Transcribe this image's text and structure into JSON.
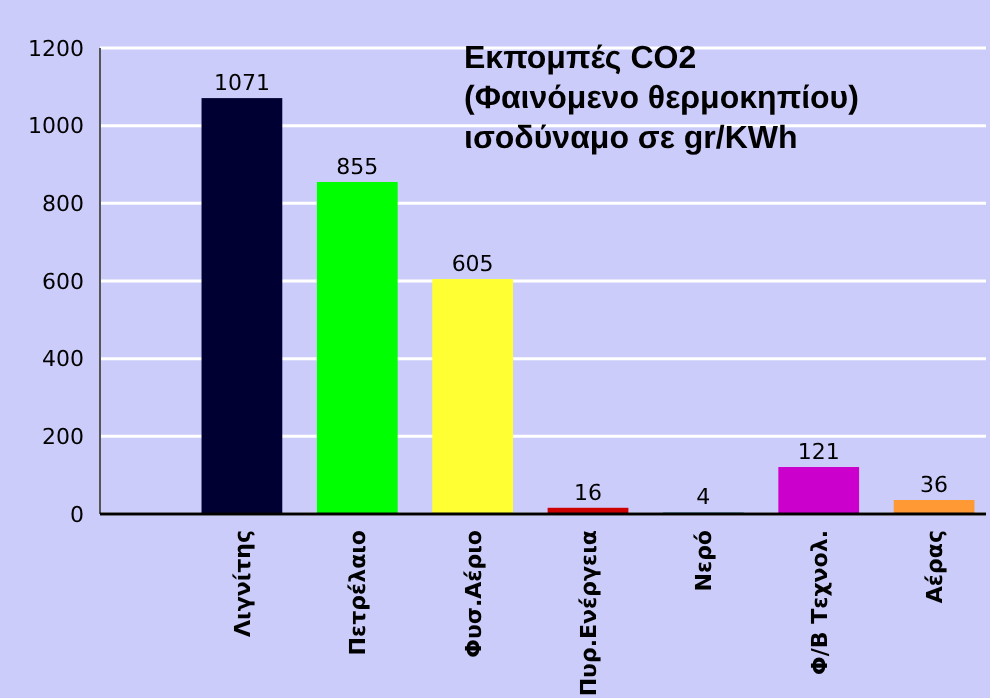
{
  "chart_data": {
    "type": "bar",
    "title": "Εκπομπές CO2\n(Φαινόμενο θερμοκηπίου)\nισοδύναμο σε gr/KWh",
    "categories": [
      "Λιγνίτης",
      "Πετρέλαιο",
      "Φυσ.Αέριο",
      "Πυρ.Ενέργεια",
      "Νερό",
      "Φ/Β Τεχνολ.",
      "Αέρας"
    ],
    "values": [
      1071,
      855,
      605,
      16,
      4,
      121,
      36
    ],
    "colors": [
      "#000033",
      "#00ff00",
      "#ffff33",
      "#cc0000",
      "#339999",
      "#cc00cc",
      "#ff9933"
    ],
    "ylim": [
      0,
      1200
    ],
    "yticks": [
      0,
      200,
      400,
      600,
      800,
      1000,
      1200
    ],
    "grid": "y",
    "data_labels": true
  }
}
